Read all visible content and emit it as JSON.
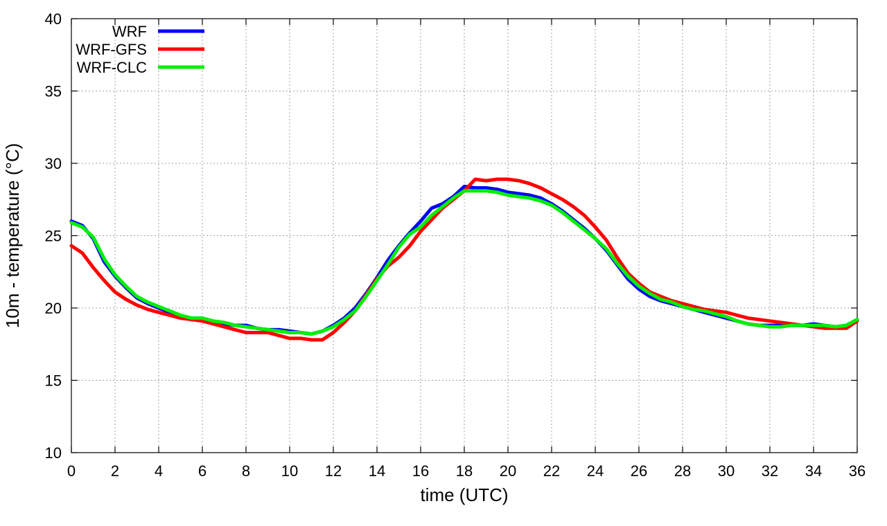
{
  "chart_data": {
    "type": "line",
    "title": "",
    "xlabel": "time (UTC)",
    "ylabel": "10m - temperature (°C)",
    "xlim": [
      0,
      36
    ],
    "ylim": [
      10,
      40
    ],
    "xticks": [
      0,
      2,
      4,
      6,
      8,
      10,
      12,
      14,
      16,
      18,
      20,
      22,
      24,
      26,
      28,
      30,
      32,
      34,
      36
    ],
    "yticks": [
      10,
      15,
      20,
      25,
      30,
      35,
      40
    ],
    "grid": true,
    "legend_position": "top-left",
    "series": [
      {
        "name": "WRF",
        "color": "#0000ff",
        "x": [
          0,
          0.5,
          1,
          1.5,
          2,
          2.5,
          3,
          3.5,
          4,
          4.5,
          5,
          5.5,
          6,
          6.5,
          7,
          7.5,
          8,
          8.5,
          9,
          9.5,
          10,
          10.5,
          11,
          11.5,
          12,
          12.5,
          13,
          13.5,
          14,
          14.5,
          15,
          15.5,
          16,
          16.5,
          17,
          17.5,
          18,
          18.5,
          19,
          19.5,
          20,
          20.5,
          21,
          21.5,
          22,
          22.5,
          23,
          23.5,
          24,
          24.5,
          25,
          25.5,
          26,
          26.5,
          27,
          27.5,
          28,
          28.5,
          29,
          29.5,
          30,
          30.5,
          31,
          31.5,
          32,
          32.5,
          33,
          33.5,
          34,
          34.5,
          35,
          35.5,
          36
        ],
        "y": [
          26.0,
          25.7,
          24.8,
          23.2,
          22.2,
          21.4,
          20.7,
          20.3,
          20.0,
          19.7,
          19.4,
          19.2,
          19.2,
          19.0,
          18.9,
          18.8,
          18.8,
          18.6,
          18.5,
          18.5,
          18.4,
          18.3,
          18.2,
          18.4,
          18.8,
          19.3,
          20.0,
          21.0,
          22.1,
          23.3,
          24.3,
          25.2,
          26.0,
          26.9,
          27.2,
          27.7,
          28.4,
          28.3,
          28.3,
          28.2,
          28.0,
          27.9,
          27.8,
          27.6,
          27.2,
          26.7,
          26.1,
          25.5,
          24.8,
          24.0,
          23.0,
          22.0,
          21.3,
          20.8,
          20.5,
          20.3,
          20.1,
          19.9,
          19.7,
          19.5,
          19.3,
          19.1,
          18.9,
          18.8,
          18.8,
          18.8,
          18.8,
          18.8,
          18.9,
          18.8,
          18.7,
          18.8,
          19.2
        ]
      },
      {
        "name": "WRF-GFS",
        "color": "#ff0000",
        "x": [
          0,
          0.5,
          1,
          1.5,
          2,
          2.5,
          3,
          3.5,
          4,
          4.5,
          5,
          5.5,
          6,
          6.5,
          7,
          7.5,
          8,
          8.5,
          9,
          9.5,
          10,
          10.5,
          11,
          11.5,
          12,
          12.5,
          13,
          13.5,
          14,
          14.5,
          15,
          15.5,
          16,
          16.5,
          17,
          17.5,
          18,
          18.5,
          19,
          19.5,
          20,
          20.5,
          21,
          21.5,
          22,
          22.5,
          23,
          23.5,
          24,
          24.5,
          25,
          25.5,
          26,
          26.5,
          27,
          27.5,
          28,
          28.5,
          29,
          29.5,
          30,
          30.5,
          31,
          31.5,
          32,
          32.5,
          33,
          33.5,
          34,
          34.5,
          35,
          35.5,
          36
        ],
        "y": [
          24.3,
          23.8,
          22.8,
          21.9,
          21.1,
          20.6,
          20.2,
          19.9,
          19.7,
          19.5,
          19.3,
          19.2,
          19.1,
          18.9,
          18.7,
          18.5,
          18.3,
          18.3,
          18.3,
          18.1,
          17.9,
          17.9,
          17.8,
          17.8,
          18.3,
          19.0,
          19.8,
          20.9,
          22.0,
          22.9,
          23.5,
          24.3,
          25.3,
          26.1,
          26.9,
          27.5,
          28.1,
          28.9,
          28.8,
          28.9,
          28.9,
          28.8,
          28.6,
          28.3,
          27.9,
          27.5,
          27.0,
          26.4,
          25.6,
          24.7,
          23.5,
          22.4,
          21.7,
          21.1,
          20.8,
          20.5,
          20.3,
          20.1,
          19.9,
          19.8,
          19.7,
          19.5,
          19.3,
          19.2,
          19.1,
          19.0,
          18.9,
          18.8,
          18.7,
          18.6,
          18.6,
          18.6,
          19.1
        ]
      },
      {
        "name": "WRF-CLC",
        "color": "#00ee00",
        "x": [
          0,
          0.5,
          1,
          1.5,
          2,
          2.5,
          3,
          3.5,
          4,
          4.5,
          5,
          5.5,
          6,
          6.5,
          7,
          7.5,
          8,
          8.5,
          9,
          9.5,
          10,
          10.5,
          11,
          11.5,
          12,
          12.5,
          13,
          13.5,
          14,
          14.5,
          15,
          15.5,
          16,
          16.5,
          17,
          17.5,
          18,
          18.5,
          19,
          19.5,
          20,
          20.5,
          21,
          21.5,
          22,
          22.5,
          23,
          23.5,
          24,
          24.5,
          25,
          25.5,
          26,
          26.5,
          27,
          27.5,
          28,
          28.5,
          29,
          29.5,
          30,
          30.5,
          31,
          31.5,
          32,
          32.5,
          33,
          33.5,
          34,
          34.5,
          35,
          35.5,
          36
        ],
        "y": [
          25.9,
          25.6,
          24.9,
          23.4,
          22.3,
          21.5,
          20.8,
          20.4,
          20.1,
          19.8,
          19.5,
          19.3,
          19.3,
          19.1,
          19.0,
          18.8,
          18.7,
          18.6,
          18.5,
          18.4,
          18.3,
          18.3,
          18.2,
          18.4,
          18.7,
          19.2,
          19.8,
          20.8,
          21.9,
          23.0,
          24.2,
          25.1,
          25.6,
          26.4,
          27.0,
          27.6,
          28.1,
          28.1,
          28.1,
          28.0,
          27.8,
          27.7,
          27.6,
          27.4,
          27.1,
          26.6,
          26.0,
          25.4,
          24.8,
          24.1,
          23.1,
          22.2,
          21.5,
          21.0,
          20.6,
          20.4,
          20.1,
          19.9,
          19.8,
          19.6,
          19.4,
          19.1,
          18.9,
          18.8,
          18.7,
          18.7,
          18.8,
          18.8,
          18.8,
          18.8,
          18.7,
          18.8,
          19.2
        ]
      }
    ]
  }
}
